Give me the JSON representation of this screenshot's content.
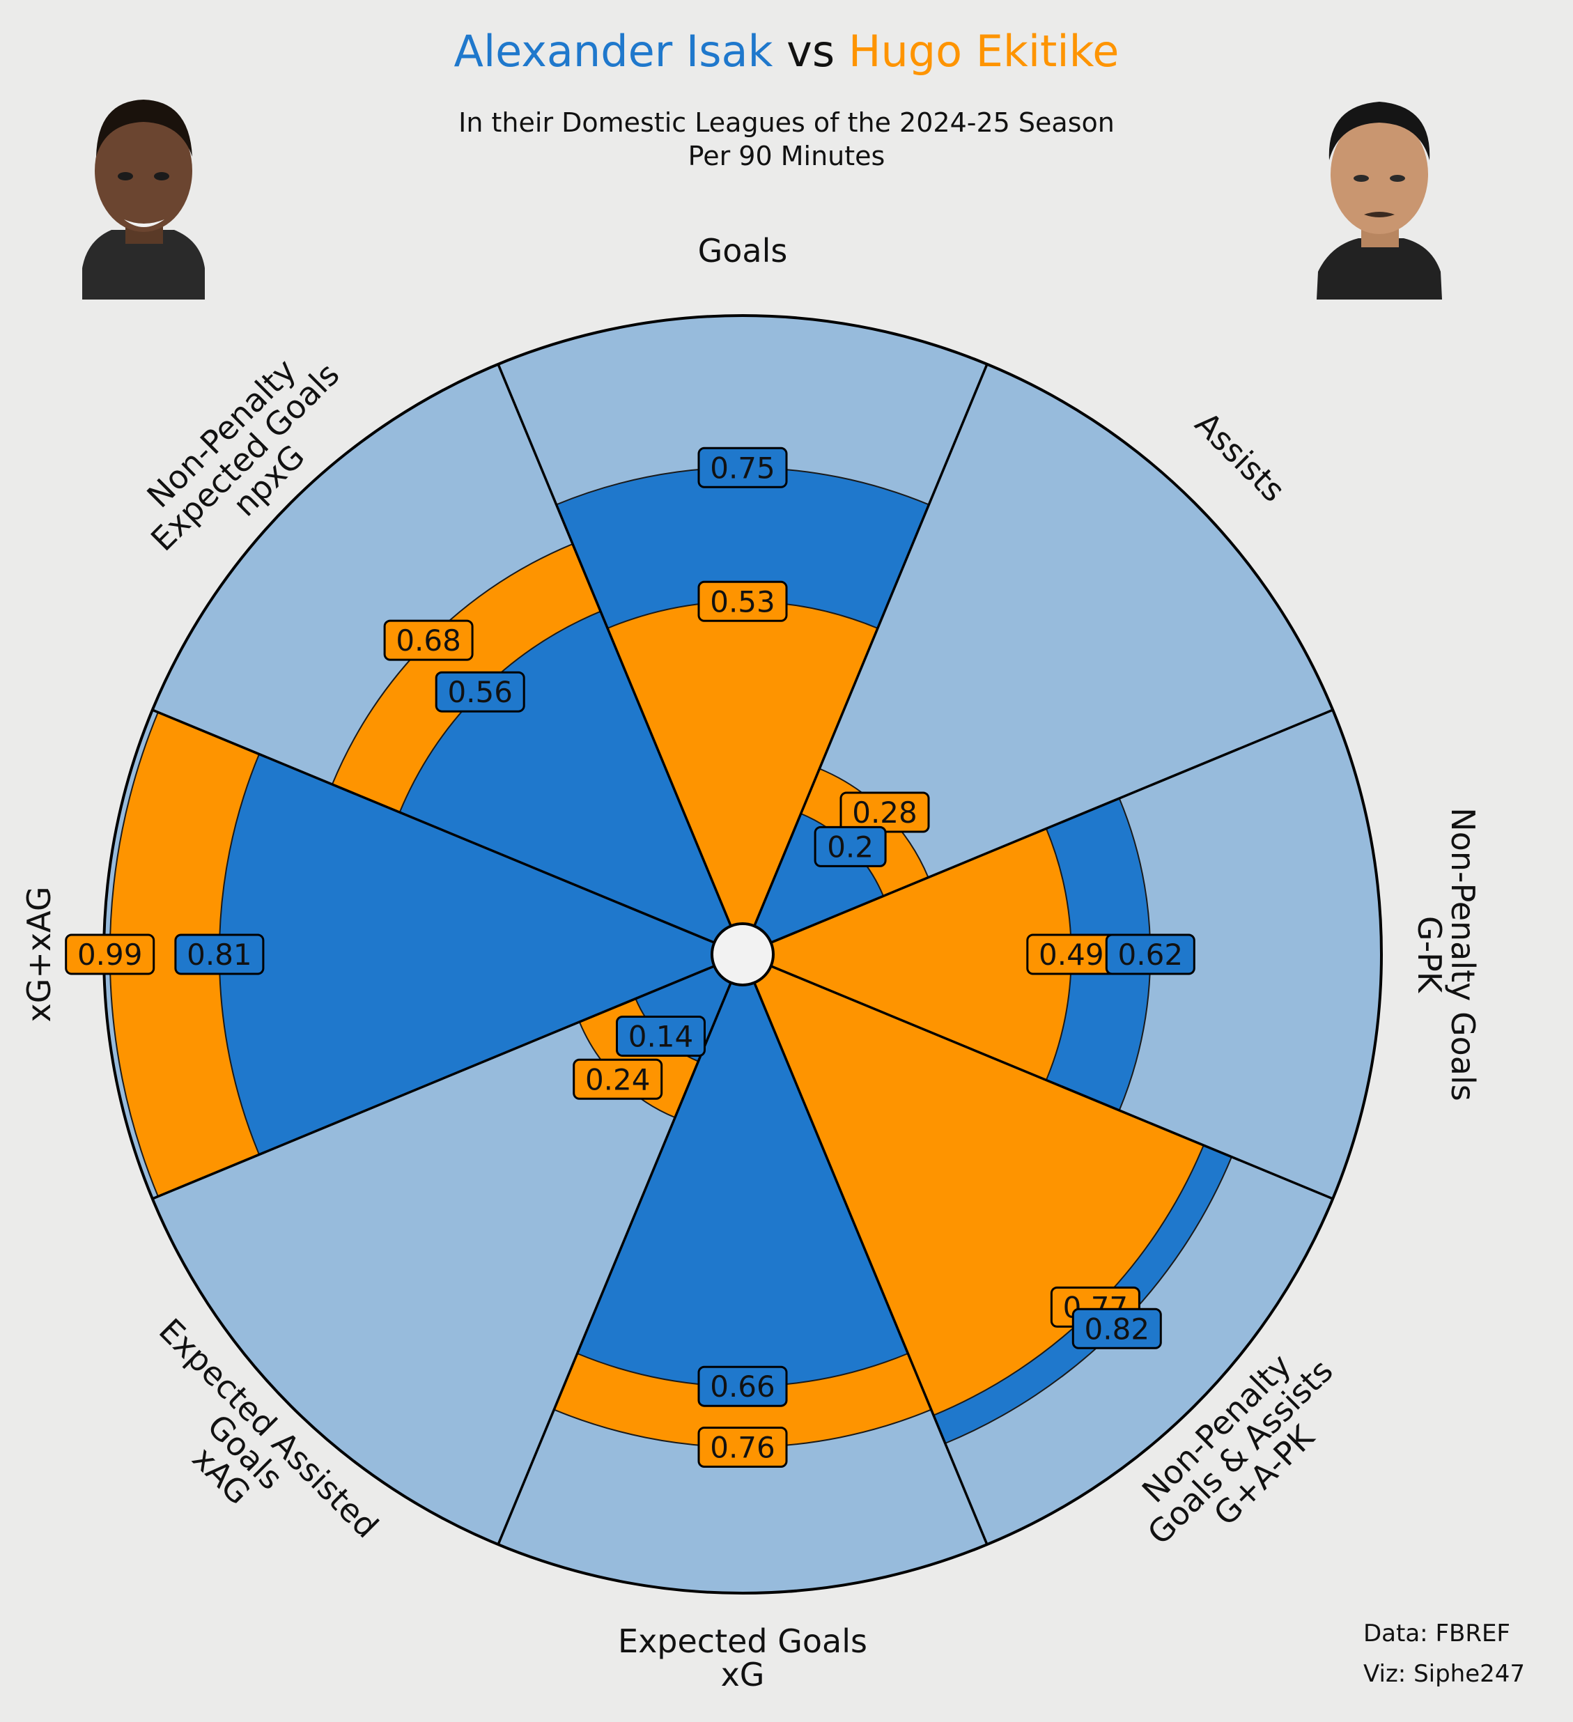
{
  "header": {
    "player_a": "Alexander Isak",
    "vs": "vs",
    "player_b": "Hugo Ekitike",
    "subtitle_line1": "In their Domestic Leagues of the 2024-25 Season",
    "subtitle_line2": "Per 90 Minutes"
  },
  "credits": {
    "data": "Data: FBREF",
    "viz": "Viz: Siphe247"
  },
  "colors": {
    "player_a": "#1f78cc",
    "player_b": "#fe9400",
    "background_slice": "#97bbdc",
    "page_background": "#ebebea"
  },
  "chart_data": {
    "type": "pizza",
    "series": [
      {
        "name": "Alexander Isak",
        "color": "#1f78cc",
        "values": [
          0.75,
          0.2,
          0.62,
          0.82,
          0.66,
          0.14,
          0.81,
          0.56
        ]
      },
      {
        "name": "Hugo Ekitike",
        "color": "#fe9400",
        "values": [
          0.53,
          0.28,
          0.49,
          0.77,
          0.76,
          0.24,
          0.99,
          0.68
        ]
      }
    ],
    "categories": [
      [
        "Goals"
      ],
      [
        "Assists"
      ],
      [
        "Non-Penalty Goals",
        "G-PK"
      ],
      [
        "Non-Penalty",
        "Goals & Assists",
        "G+A-PK"
      ],
      [
        "Expected Goals",
        "xG"
      ],
      [
        "Expected Assisted",
        "Goals",
        "xAG"
      ],
      [
        "xG+xAG"
      ],
      [
        "Non-Penalty",
        "Expected Goals",
        "npxG"
      ]
    ]
  }
}
